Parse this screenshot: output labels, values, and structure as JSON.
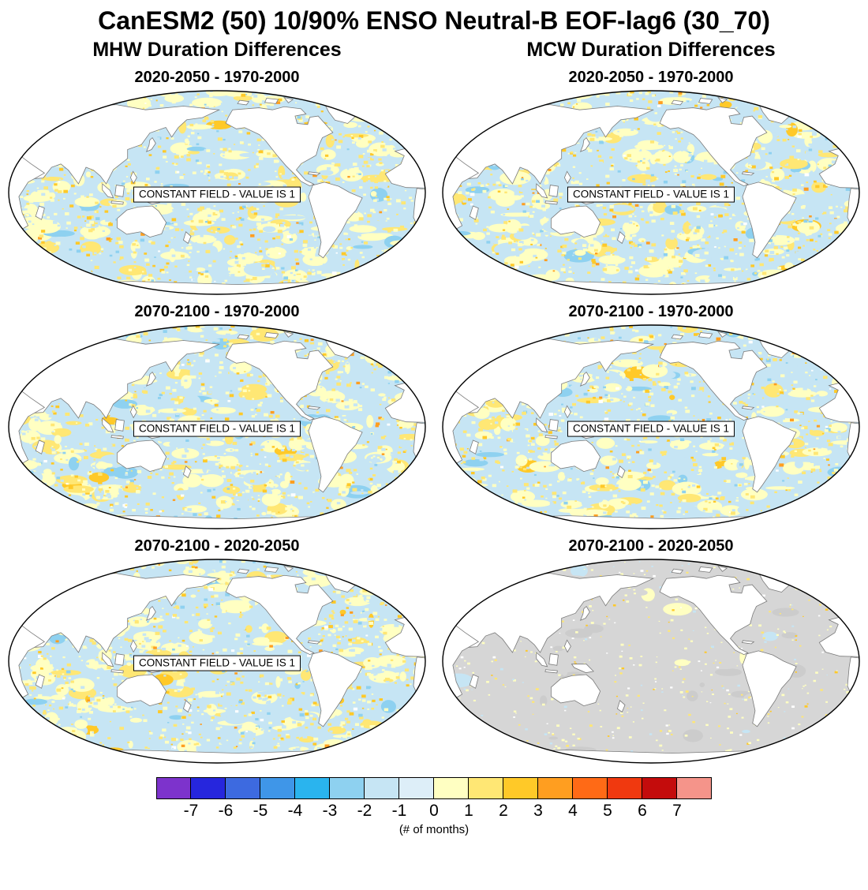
{
  "title": "CanESM2 (50) 10/90% ENSO Neutral-B EOF-lag6 (30_70)",
  "columns": [
    {
      "label": "MHW Duration Differences"
    },
    {
      "label": "MCW Duration Differences"
    }
  ],
  "panels": [
    {
      "id": "mhw-2020-2050-minus-1970-2000",
      "column": "MHW",
      "title": "2020-2050 - 1970-2000",
      "annotation": "CONSTANT FIELD - VALUE IS 1",
      "field": "speckled"
    },
    {
      "id": "mcw-2020-2050-minus-1970-2000",
      "column": "MCW",
      "title": "2020-2050 - 1970-2000",
      "annotation": "CONSTANT FIELD - VALUE IS 1",
      "field": "speckled"
    },
    {
      "id": "mhw-2070-2100-minus-1970-2000",
      "column": "MHW",
      "title": "2070-2100 - 1970-2000",
      "annotation": "CONSTANT FIELD - VALUE IS 1",
      "field": "speckled"
    },
    {
      "id": "mcw-2070-2100-minus-1970-2000",
      "column": "MCW",
      "title": "2070-2100 - 1970-2000",
      "annotation": "CONSTANT FIELD - VALUE IS 1",
      "field": "speckled"
    },
    {
      "id": "mhw-2070-2100-minus-2020-2050",
      "column": "MHW",
      "title": "2070-2100 - 2020-2050",
      "annotation": "CONSTANT FIELD - VALUE IS 1",
      "field": "speckled"
    },
    {
      "id": "mcw-2070-2100-minus-2020-2050",
      "column": "MCW",
      "title": "2070-2100 - 2020-2050",
      "annotation": null,
      "field": "gray"
    }
  ],
  "colorbar": {
    "caption": "(# of months)",
    "tick_labels": [
      "-7",
      "-6",
      "-5",
      "-4",
      "-3",
      "-2",
      "-1",
      "0",
      "1",
      "2",
      "3",
      "4",
      "5",
      "6",
      "7"
    ],
    "colors": [
      "#7d33cc",
      "#2626dd",
      "#3d6ae0",
      "#3f96e8",
      "#2ab4ee",
      "#8ed1f0",
      "#c6e5f4",
      "#ddeef8",
      "#ffffc2",
      "#ffe774",
      "#ffc928",
      "#ff9e20",
      "#ff6a16",
      "#f0390f",
      "#c40c0c",
      "#f5948a"
    ]
  },
  "map_colors": {
    "land": "#ffffff",
    "coastline": "#7a7a7a",
    "map_outline": "#000000",
    "gray_field": "#d6d6d6",
    "gray_field_alt": "#cccccc"
  },
  "chart_data": {
    "type": "heatmap",
    "title": "CanESM2 (50) 10/90% ENSO Neutral-B EOF-lag6 (30_70)",
    "layout": "3 rows x 2 columns of Pacific-centered global maps (elliptical Robinson-style projection) with one shared discrete colorbar at bottom",
    "columns": [
      "MHW Duration Differences",
      "MCW Duration Differences"
    ],
    "rows": [
      "2020-2050 - 1970-2000",
      "2070-2100 - 1970-2000",
      "2070-2100 - 2020-2050"
    ],
    "value_unit": "(# of months)",
    "colorbar_bounds": [
      -7,
      -6,
      -5,
      -4,
      -3,
      -2,
      -1,
      0,
      1,
      2,
      3,
      4,
      5,
      6,
      7
    ],
    "colorbar_colors": [
      "#7d33cc",
      "#2626dd",
      "#3d6ae0",
      "#3f96e8",
      "#2ab4ee",
      "#8ed1f0",
      "#c6e5f4",
      "#ddeef8",
      "#ffffc2",
      "#ffe774",
      "#ffc928",
      "#ff9e20",
      "#ff6a16",
      "#f0390f",
      "#c40c0c",
      "#f5948a"
    ],
    "panels": [
      {
        "row": "2020-2050 - 1970-2000",
        "column": "MHW Duration Differences",
        "annotation": "CONSTANT FIELD - VALUE IS 1",
        "field_summary": "ocean mottled mostly between -1 and +1 months (pale blue / pale yellow), scattered +1 to +2 yellow patches"
      },
      {
        "row": "2020-2050 - 1970-2000",
        "column": "MCW Duration Differences",
        "annotation": "CONSTANT FIELD - VALUE IS 1",
        "field_summary": "ocean mottled mostly between -1 and +1 months (pale blue / pale yellow), scattered +1 to +2 yellow patches"
      },
      {
        "row": "2070-2100 - 1970-2000",
        "column": "MHW Duration Differences",
        "annotation": "CONSTANT FIELD - VALUE IS 1",
        "field_summary": "ocean mottled between -1 and +2 months, occasional orange (+3 to +4) specks"
      },
      {
        "row": "2070-2100 - 1970-2000",
        "column": "MCW Duration Differences",
        "annotation": "CONSTANT FIELD - VALUE IS 1",
        "field_summary": "ocean mottled between -1 and +2 months, scattered yellow patches"
      },
      {
        "row": "2070-2100 - 2020-2050",
        "column": "MHW Duration Differences",
        "annotation": "CONSTANT FIELD - VALUE IS 1",
        "field_summary": "ocean mottled between -1 and +2 months, occasional orange specks"
      },
      {
        "row": "2070-2100 - 2020-2050",
        "column": "MCW Duration Differences",
        "annotation": null,
        "field_summary": "mostly gray (missing / near-zero) ocean with sparse pale-yellow 0 to +1 specks"
      }
    ]
  }
}
